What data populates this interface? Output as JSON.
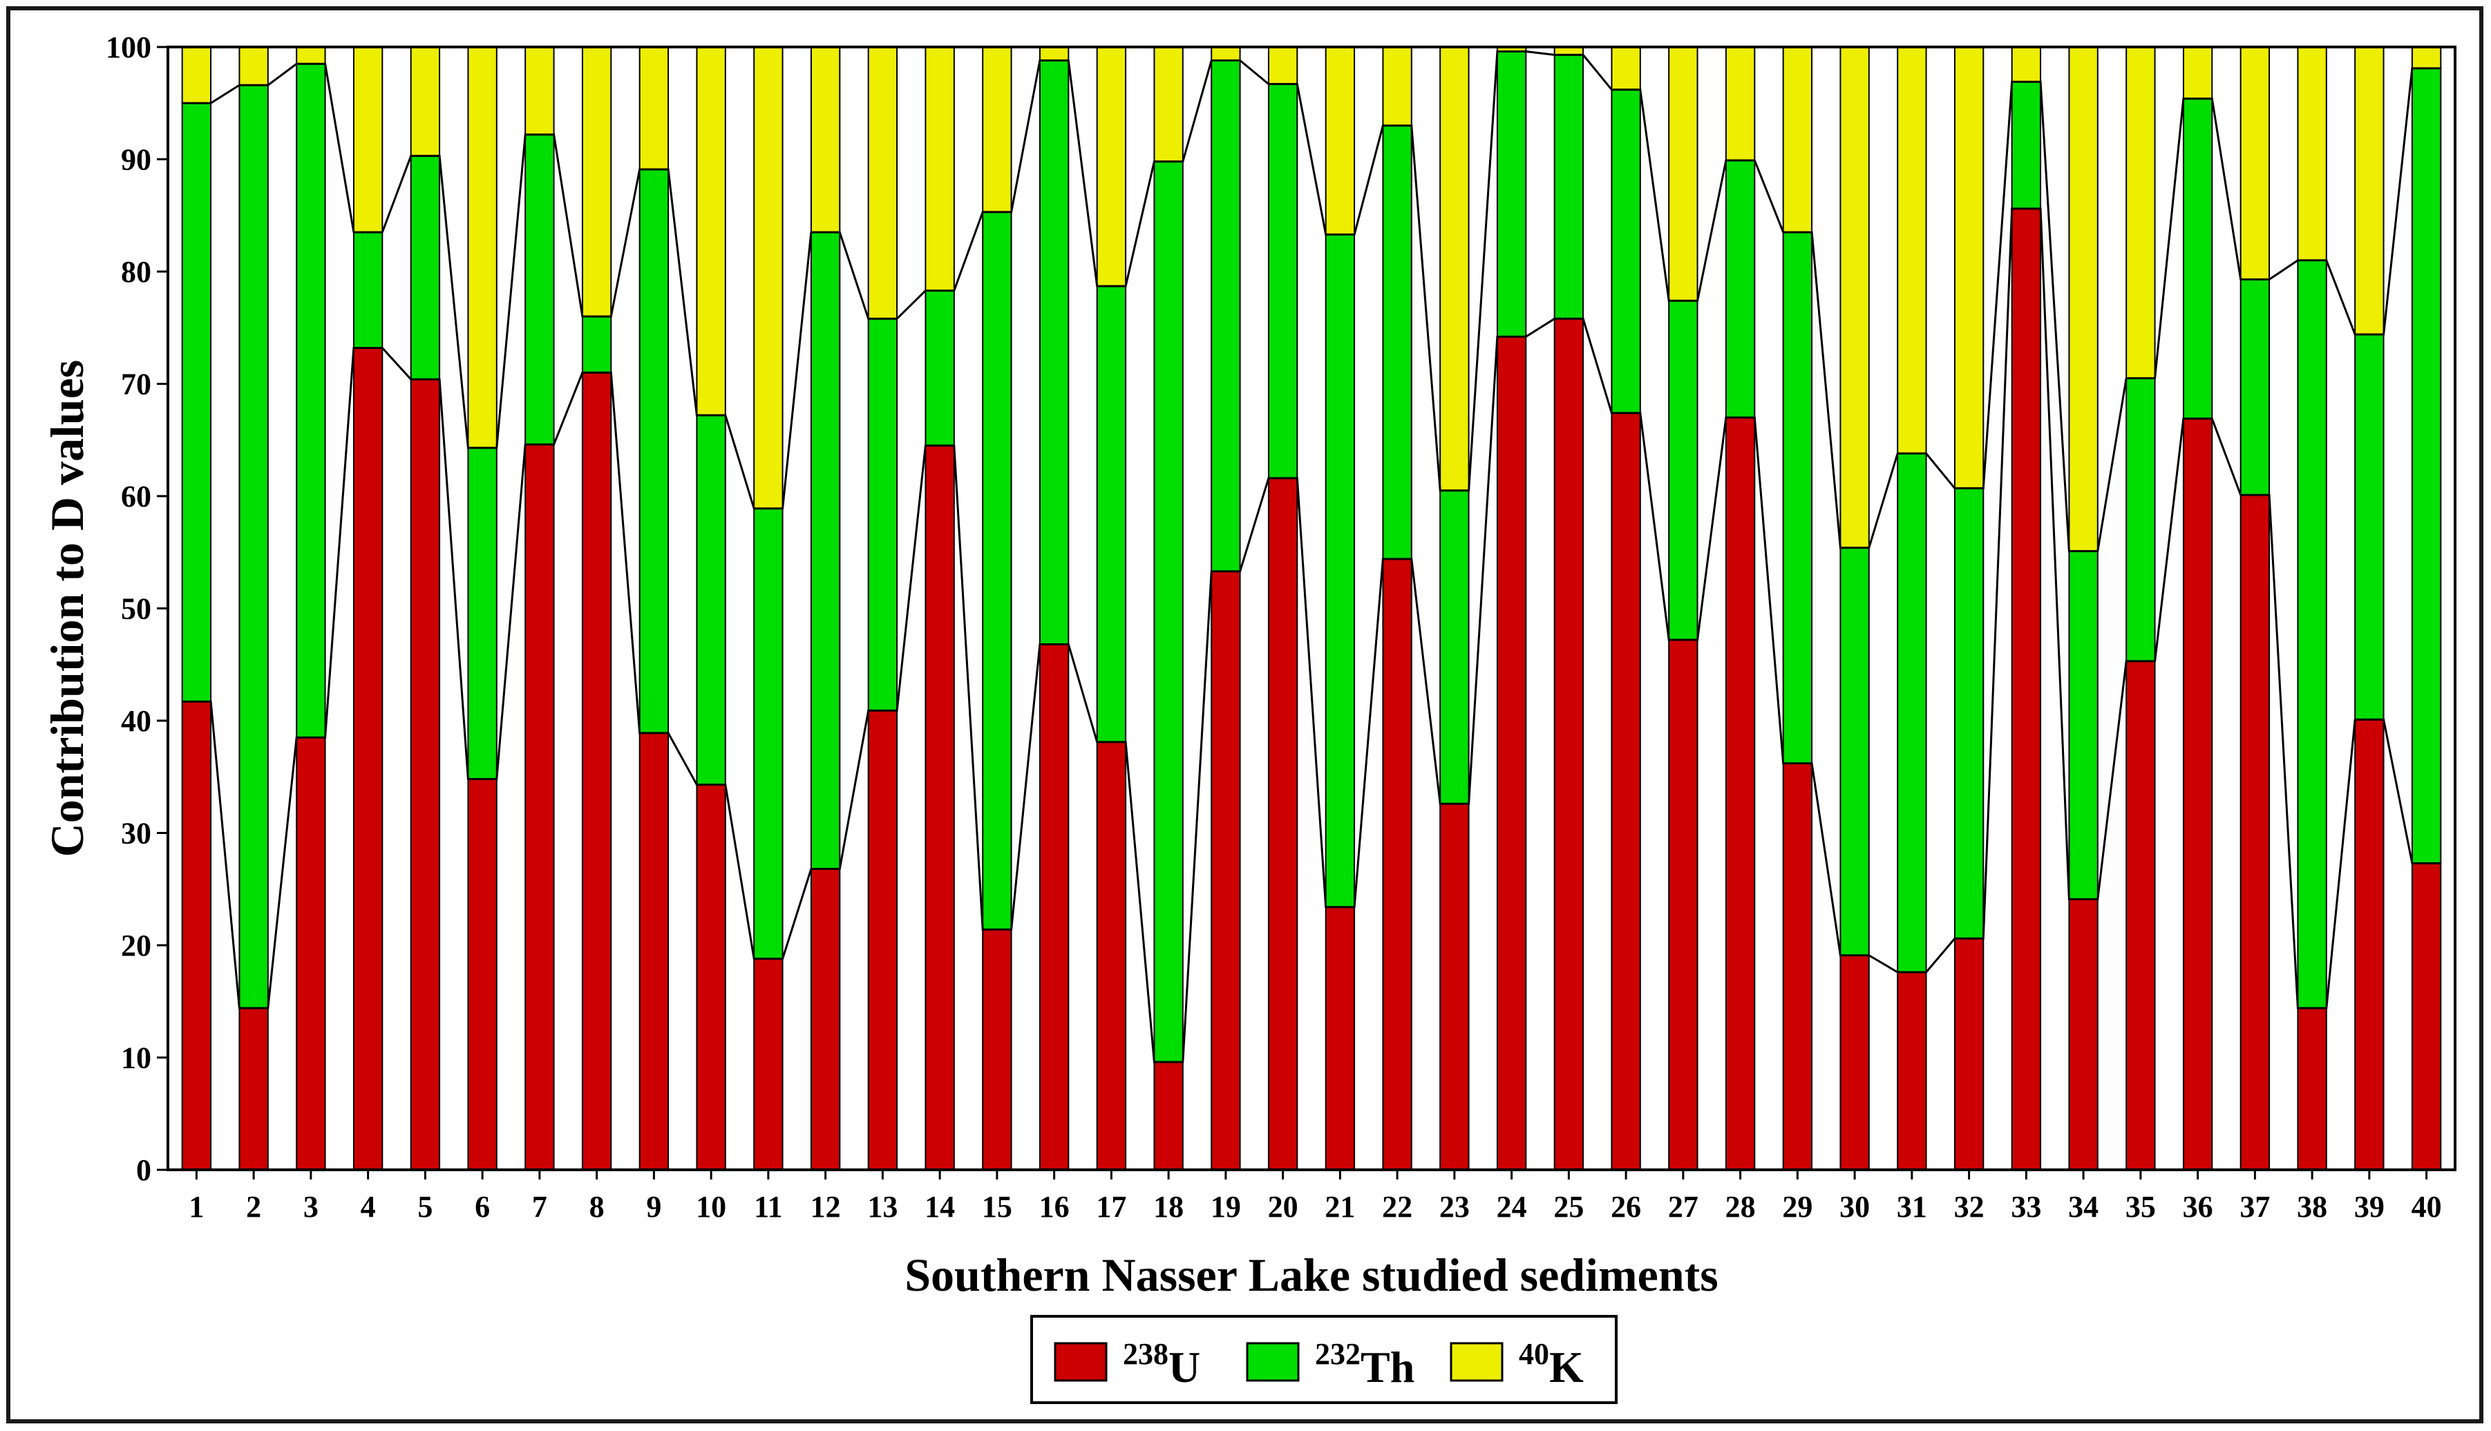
{
  "chart_data": {
    "type": "bar",
    "stacked": true,
    "title": "",
    "xlabel": "Southern Nasser Lake studied sediments",
    "ylabel": "Contribution to D values",
    "ylim": [
      0,
      100
    ],
    "yticks": [
      0,
      10,
      20,
      30,
      40,
      50,
      60,
      70,
      80,
      90,
      100
    ],
    "grid": false,
    "legend_position": "bottom-center",
    "categories": [
      "1",
      "2",
      "3",
      "4",
      "5",
      "6",
      "7",
      "8",
      "9",
      "10",
      "11",
      "12",
      "13",
      "14",
      "15",
      "16",
      "17",
      "18",
      "19",
      "20",
      "21",
      "22",
      "23",
      "24",
      "25",
      "26",
      "27",
      "28",
      "29",
      "30",
      "31",
      "32",
      "33",
      "34",
      "35",
      "36",
      "37",
      "38",
      "39",
      "40"
    ],
    "series": [
      {
        "name": "238U",
        "label_mass": "238",
        "label_symbol": "U",
        "color": "#cc0000",
        "values": [
          41.7,
          14.4,
          38.5,
          73.2,
          70.4,
          34.8,
          64.6,
          71.0,
          38.9,
          34.3,
          18.8,
          26.8,
          40.9,
          64.5,
          21.4,
          46.8,
          38.1,
          9.6,
          53.3,
          61.6,
          23.4,
          54.4,
          32.6,
          74.2,
          75.8,
          67.4,
          47.2,
          67.0,
          36.2,
          19.1,
          17.6,
          20.6,
          85.6,
          24.1,
          45.3,
          66.9,
          60.1,
          14.4,
          40.1,
          27.3
        ]
      },
      {
        "name": "232Th",
        "label_mass": "232",
        "label_symbol": "Th",
        "color": "#00dd00",
        "values": [
          53.3,
          82.2,
          60.0,
          10.3,
          19.9,
          29.5,
          27.6,
          5.0,
          50.2,
          32.9,
          40.1,
          56.7,
          34.9,
          13.8,
          63.9,
          52.0,
          40.6,
          80.2,
          45.5,
          35.1,
          59.9,
          38.6,
          27.9,
          25.4,
          23.5,
          28.8,
          30.2,
          22.9,
          47.3,
          36.3,
          46.2,
          40.1,
          11.3,
          31.0,
          25.2,
          28.5,
          19.2,
          66.6,
          34.3,
          70.8
        ]
      },
      {
        "name": "40K",
        "label_mass": "40",
        "label_symbol": "K",
        "color": "#eeee00",
        "values": [
          5.0,
          3.4,
          1.5,
          16.5,
          9.7,
          35.7,
          7.8,
          24.0,
          10.9,
          32.8,
          41.1,
          16.5,
          24.2,
          21.7,
          14.7,
          1.2,
          21.3,
          10.2,
          1.2,
          3.3,
          16.7,
          7.0,
          39.5,
          0.4,
          0.7,
          3.8,
          22.6,
          10.1,
          16.5,
          44.6,
          36.2,
          39.3,
          3.1,
          44.9,
          29.5,
          4.6,
          20.7,
          19.0,
          25.6,
          1.9
        ]
      }
    ]
  }
}
